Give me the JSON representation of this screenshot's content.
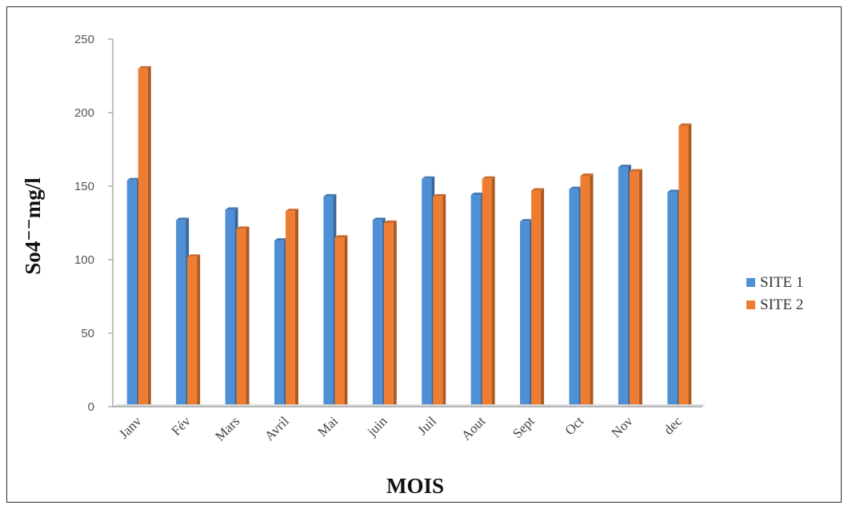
{
  "chart_data": {
    "type": "bar",
    "title": "",
    "xlabel": "MOIS",
    "ylabel": "So4⁻⁻mg/l",
    "ylim": [
      0,
      250
    ],
    "yticks": [
      0,
      50,
      100,
      150,
      200,
      250
    ],
    "categories": [
      "Janv",
      "Fév",
      "Mars",
      "Avril",
      "Mai",
      "juin",
      "Juil",
      "Aout",
      "Sept",
      "Oct",
      "Nov",
      "dec"
    ],
    "series": [
      {
        "name": "SITE 1",
        "color": "#4f8fd6",
        "values": [
          154,
          127,
          134,
          113,
          143,
          127,
          155,
          144,
          126,
          148,
          163,
          146
        ]
      },
      {
        "name": "SITE 2",
        "color": "#ef7d31",
        "values": [
          230,
          102,
          121,
          133,
          115,
          125,
          143,
          155,
          147,
          157,
          160,
          191
        ]
      }
    ],
    "grid": false,
    "legend": "right",
    "style": "3d-column"
  }
}
